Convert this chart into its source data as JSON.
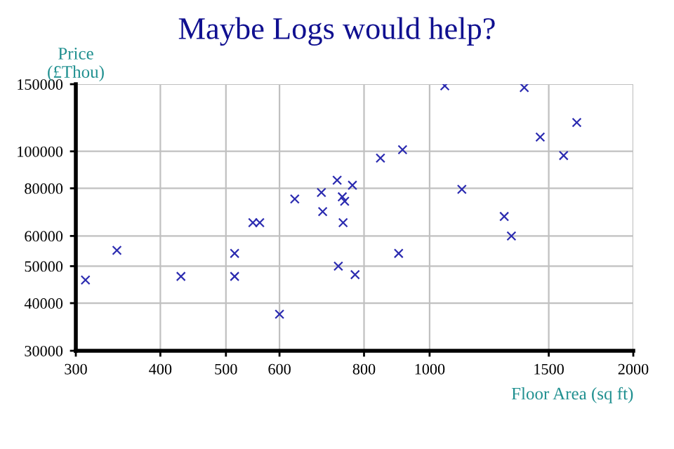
{
  "chart_data": {
    "type": "scatter",
    "title": "Maybe Logs would help?",
    "xlabel": "Floor Area (sq ft)",
    "ylabel": "Price\n(£Thou)",
    "log": "xy",
    "grid": true,
    "marker": "cross",
    "series": [
      {
        "color": "#2b2bb0",
        "x": [
          310,
          345,
          429,
          515,
          515,
          600,
          548,
          561,
          632,
          692,
          695,
          730,
          743,
          749,
          745,
          733,
          769,
          776,
          846,
          912,
          900,
          1053,
          1116,
          1289,
          1321,
          1380,
          1457,
          1578,
          1650
        ],
        "values": [
          46000,
          55000,
          47000,
          54000,
          47000,
          37400,
          65000,
          65000,
          75000,
          78000,
          69500,
          84000,
          76000,
          74000,
          65000,
          50000,
          81500,
          47500,
          96000,
          101000,
          54000,
          148500,
          79500,
          67500,
          60000,
          147000,
          109000,
          97500,
          119000
        ]
      }
    ],
    "xlim": [
      300,
      2000
    ],
    "xticks": [
      300,
      400,
      500,
      600,
      800,
      1000,
      1500,
      2000
    ],
    "ylim": [
      30000,
      150000
    ],
    "yticks": [
      30000,
      40000,
      50000,
      60000,
      80000,
      100000,
      150000
    ]
  }
}
